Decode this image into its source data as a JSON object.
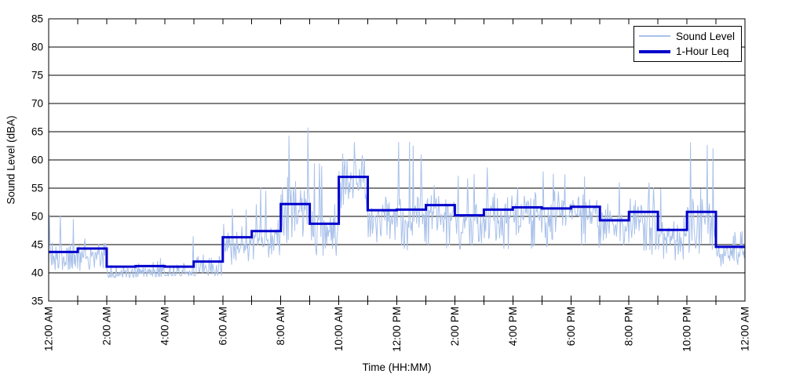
{
  "chart_data": {
    "type": "line",
    "title": "",
    "xlabel": "Time (HH:MM)",
    "ylabel": "Sound Level (dBA)",
    "ylim": [
      35,
      85
    ],
    "y_ticks": [
      35,
      40,
      45,
      50,
      55,
      60,
      65,
      70,
      75,
      80,
      85
    ],
    "xlim_hours": [
      0,
      24
    ],
    "x_minor_tick_every_hours": 1,
    "x_label_every_hours": 2,
    "x_tick_labels": [
      "12:00 AM",
      "2:00 AM",
      "4:00 AM",
      "6:00 AM",
      "8:00 AM",
      "10:00 AM",
      "12:00 PM",
      "2:00 PM",
      "4:00 PM",
      "6:00 PM",
      "8:00 PM",
      "10:00 PM",
      "12:00 AM"
    ],
    "grid": "horizontal",
    "colors": {
      "sound_level_series": "#A9C1EA",
      "leq_series": "#0000CC",
      "gridline": "#000000",
      "plot_border": "#000000",
      "background": "#FFFFFF"
    },
    "legend": {
      "position": "top-right",
      "entries": [
        {
          "label": "Sound Level",
          "color": "#A9C1EA",
          "weight": "thin"
        },
        {
          "label": "1-Hour Leq",
          "color": "#0000CC",
          "weight": "thick"
        }
      ]
    },
    "series": [
      {
        "name": "Sound Level",
        "style": "noisy line, ~1-minute samples (reconstructed from pixel envelope)",
        "color": "#A9C1EA",
        "hourly_range_dBA": [
          [
            40.5,
            50.5
          ],
          [
            39.8,
            49.0
          ],
          [
            39.2,
            45.0
          ],
          [
            39.3,
            49.0
          ],
          [
            39.5,
            47.0
          ],
          [
            39.5,
            50.5
          ],
          [
            41.0,
            52.5
          ],
          [
            42.0,
            55.5
          ],
          [
            43.0,
            66.0
          ],
          [
            43.0,
            60.0
          ],
          [
            43.5,
            66.5
          ],
          [
            44.0,
            60.0
          ],
          [
            44.0,
            64.0
          ],
          [
            44.0,
            60.0
          ],
          [
            44.0,
            58.0
          ],
          [
            44.0,
            59.0
          ],
          [
            44.0,
            59.0
          ],
          [
            44.5,
            58.0
          ],
          [
            44.0,
            57.5
          ],
          [
            43.5,
            56.0
          ],
          [
            43.0,
            57.0
          ],
          [
            42.0,
            55.5
          ],
          [
            42.0,
            63.5
          ],
          [
            40.0,
            47.5
          ]
        ]
      },
      {
        "name": "1-Hour Leq",
        "style": "step",
        "color": "#0000CC",
        "hourly_leq_dBA": [
          43.7,
          44.3,
          41.1,
          41.2,
          41.1,
          42.0,
          46.3,
          47.4,
          52.2,
          48.7,
          57.0,
          51.1,
          51.2,
          52.0,
          50.2,
          51.2,
          51.6,
          51.4,
          51.7,
          49.3,
          50.8,
          47.6,
          50.8,
          44.6
        ]
      }
    ]
  }
}
